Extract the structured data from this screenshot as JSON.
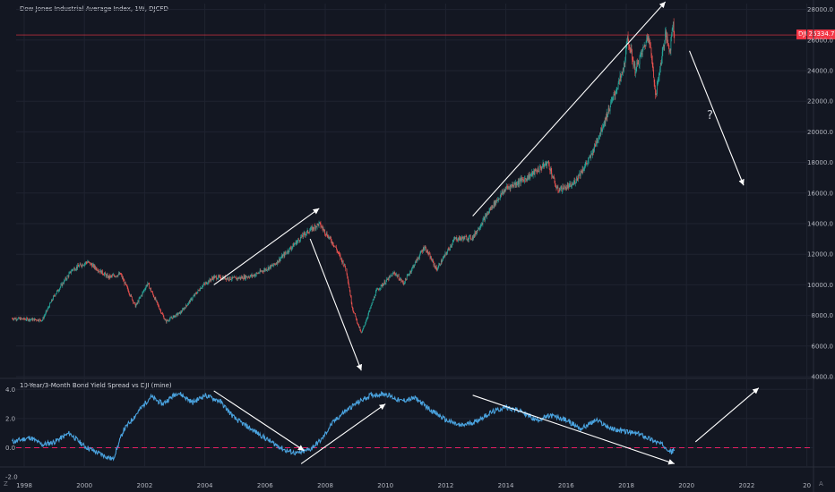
{
  "header": {
    "title": "Dow Jones Industrial Average Index, 1W, DJCFD"
  },
  "price_tag": {
    "symbol": "DJI",
    "value": "26334.7"
  },
  "indicator": {
    "title": "10-Year/3-Month Bond Yield Spread vs DJI (mine)"
  },
  "annotations": {
    "question": "?"
  },
  "corner": {
    "left_label": "Z",
    "right_label": "A"
  },
  "colors": {
    "background": "#131722",
    "up": "#26a69a",
    "down": "#ef5350",
    "spread_line": "#4aa3df",
    "zero_line": "#e91e63",
    "arrow": "#ffffff",
    "price_line": "#f23645"
  },
  "chart_data": [
    {
      "type": "candlestick",
      "title": "Dow Jones Industrial Average Index, 1W, DJCFD",
      "x_ticks": [
        "1998",
        "2000",
        "2002",
        "2004",
        "2006",
        "2008",
        "2010",
        "2012",
        "2014",
        "2016",
        "2018",
        "2020",
        "2022",
        "20"
      ],
      "y_ticks": [
        "4000.0",
        "6000.0",
        "8000.0",
        "10000.0",
        "12000.0",
        "14000.0",
        "16000.0",
        "18000.0",
        "20000.0",
        "22000.0",
        "24000.0",
        "26000.0",
        "28000.0"
      ],
      "ylim": [
        3800,
        28800
      ],
      "last_value": 26334.7,
      "trend_points": [
        {
          "year": 1997.6,
          "value": 7800
        },
        {
          "year": 1998.6,
          "value": 7700
        },
        {
          "year": 1999.0,
          "value": 9300
        },
        {
          "year": 1999.6,
          "value": 11000
        },
        {
          "year": 2000.1,
          "value": 11500
        },
        {
          "year": 2000.8,
          "value": 10500
        },
        {
          "year": 2001.2,
          "value": 10700
        },
        {
          "year": 2001.7,
          "value": 8600
        },
        {
          "year": 2002.1,
          "value": 10100
        },
        {
          "year": 2002.7,
          "value": 7600
        },
        {
          "year": 2003.2,
          "value": 8200
        },
        {
          "year": 2003.9,
          "value": 9900
        },
        {
          "year": 2004.3,
          "value": 10500
        },
        {
          "year": 2005.0,
          "value": 10400
        },
        {
          "year": 2005.6,
          "value": 10600
        },
        {
          "year": 2006.3,
          "value": 11300
        },
        {
          "year": 2006.8,
          "value": 12300
        },
        {
          "year": 2007.3,
          "value": 13300
        },
        {
          "year": 2007.8,
          "value": 14000
        },
        {
          "year": 2008.3,
          "value": 12600
        },
        {
          "year": 2008.7,
          "value": 11000
        },
        {
          "year": 2008.9,
          "value": 8500
        },
        {
          "year": 2009.2,
          "value": 6800
        },
        {
          "year": 2009.7,
          "value": 9600
        },
        {
          "year": 2010.3,
          "value": 10800
        },
        {
          "year": 2010.6,
          "value": 10100
        },
        {
          "year": 2011.3,
          "value": 12500
        },
        {
          "year": 2011.7,
          "value": 11000
        },
        {
          "year": 2012.3,
          "value": 13000
        },
        {
          "year": 2012.9,
          "value": 13100
        },
        {
          "year": 2013.5,
          "value": 15000
        },
        {
          "year": 2014.0,
          "value": 16300
        },
        {
          "year": 2014.7,
          "value": 17000
        },
        {
          "year": 2015.4,
          "value": 18000
        },
        {
          "year": 2015.7,
          "value": 16200
        },
        {
          "year": 2016.2,
          "value": 16500
        },
        {
          "year": 2016.8,
          "value": 18300
        },
        {
          "year": 2017.3,
          "value": 20800
        },
        {
          "year": 2017.9,
          "value": 24000
        },
        {
          "year": 2018.05,
          "value": 26100
        },
        {
          "year": 2018.3,
          "value": 24000
        },
        {
          "year": 2018.75,
          "value": 26400
        },
        {
          "year": 2018.98,
          "value": 22400
        },
        {
          "year": 2019.3,
          "value": 26400
        },
        {
          "year": 2019.45,
          "value": 25300
        },
        {
          "year": 2019.55,
          "value": 27200
        },
        {
          "year": 2019.6,
          "value": 26300
        }
      ]
    },
    {
      "type": "line",
      "title": "10-Year/3-Month Bond Yield Spread vs DJI (mine)",
      "y_ticks": [
        "-2.0",
        "0.0",
        "2.0",
        "4.0"
      ],
      "ylim": [
        -2.4,
        4.4
      ],
      "reference_line": 0,
      "points": [
        {
          "year": 1997.6,
          "value": 0.4
        },
        {
          "year": 1998.2,
          "value": 0.7
        },
        {
          "year": 1998.6,
          "value": 0.2
        },
        {
          "year": 1999.0,
          "value": 0.4
        },
        {
          "year": 1999.5,
          "value": 1.0
        },
        {
          "year": 2000.0,
          "value": 0.1
        },
        {
          "year": 2000.5,
          "value": -0.4
        },
        {
          "year": 2000.95,
          "value": -0.8
        },
        {
          "year": 2001.3,
          "value": 1.2
        },
        {
          "year": 2001.8,
          "value": 2.5
        },
        {
          "year": 2002.2,
          "value": 3.5
        },
        {
          "year": 2002.6,
          "value": 3.0
        },
        {
          "year": 2003.1,
          "value": 3.8
        },
        {
          "year": 2003.6,
          "value": 3.1
        },
        {
          "year": 2004.0,
          "value": 3.6
        },
        {
          "year": 2004.5,
          "value": 3.2
        },
        {
          "year": 2005.0,
          "value": 2.0
        },
        {
          "year": 2005.6,
          "value": 1.2
        },
        {
          "year": 2006.2,
          "value": 0.4
        },
        {
          "year": 2006.7,
          "value": -0.2
        },
        {
          "year": 2007.1,
          "value": -0.4
        },
        {
          "year": 2007.5,
          "value": -0.1
        },
        {
          "year": 2007.9,
          "value": 0.6
        },
        {
          "year": 2008.2,
          "value": 1.6
        },
        {
          "year": 2008.6,
          "value": 2.4
        },
        {
          "year": 2009.0,
          "value": 3.0
        },
        {
          "year": 2009.5,
          "value": 3.6
        },
        {
          "year": 2010.0,
          "value": 3.7
        },
        {
          "year": 2010.5,
          "value": 3.2
        },
        {
          "year": 2011.0,
          "value": 3.4
        },
        {
          "year": 2011.5,
          "value": 2.6
        },
        {
          "year": 2012.0,
          "value": 1.9
        },
        {
          "year": 2012.5,
          "value": 1.5
        },
        {
          "year": 2013.0,
          "value": 1.8
        },
        {
          "year": 2013.5,
          "value": 2.4
        },
        {
          "year": 2014.0,
          "value": 2.8
        },
        {
          "year": 2014.5,
          "value": 2.5
        },
        {
          "year": 2015.0,
          "value": 1.9
        },
        {
          "year": 2015.5,
          "value": 2.2
        },
        {
          "year": 2016.0,
          "value": 1.9
        },
        {
          "year": 2016.5,
          "value": 1.3
        },
        {
          "year": 2017.0,
          "value": 1.9
        },
        {
          "year": 2017.5,
          "value": 1.3
        },
        {
          "year": 2018.0,
          "value": 1.1
        },
        {
          "year": 2018.5,
          "value": 0.9
        },
        {
          "year": 2019.0,
          "value": 0.4
        },
        {
          "year": 2019.3,
          "value": 0.1
        },
        {
          "year": 2019.5,
          "value": -0.3
        },
        {
          "year": 2019.6,
          "value": -0.1
        }
      ]
    }
  ]
}
